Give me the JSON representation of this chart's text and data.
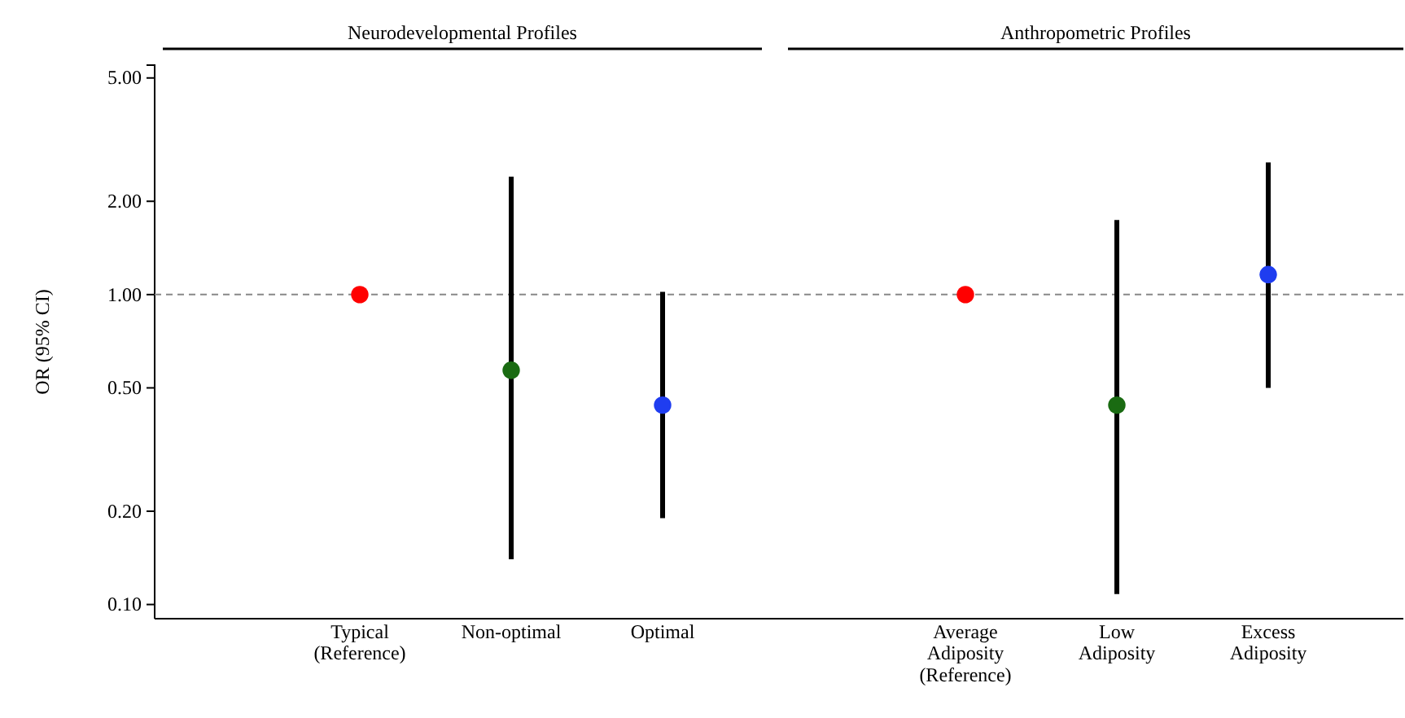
{
  "chart_data": {
    "type": "scatter",
    "ylabel": "OR (95% CI)",
    "categories": [
      null,
      "Typical\n(Reference)",
      "Non-optimal",
      "Optimal",
      null,
      "Average\nAdiposity\n(Reference)",
      "Low\nAdiposity",
      "Excess\nAdiposity"
    ],
    "values": [
      null,
      1.0,
      0.57,
      0.44,
      null,
      1.0,
      0.44,
      1.16
    ],
    "errors": [
      null,
      null,
      [
        0.14,
        2.4
      ],
      [
        0.19,
        1.02
      ],
      null,
      null,
      [
        0.108,
        1.74
      ],
      [
        0.5,
        2.67
      ]
    ],
    "colors": [
      null,
      "#ff0000",
      "#1a6b12",
      "#1f3df0",
      null,
      "#ff0000",
      "#1a6b12",
      "#1f3df0"
    ],
    "log": true,
    "ylim": [
      0.09,
      5.5
    ],
    "yticks": [
      {
        "value": 0.1,
        "label": "0.10"
      },
      {
        "value": 0.2,
        "label": "0.20"
      },
      {
        "value": 0.5,
        "label": "0.50"
      },
      {
        "value": 1,
        "label": "1.00"
      },
      {
        "value": 2,
        "label": "2.00"
      },
      {
        "value": 5,
        "label": "5.00"
      }
    ],
    "ref_lines": [
      {
        "axis": "y",
        "value": 1,
        "label": null,
        "color": "#888888",
        "line_style": "dashed"
      }
    ],
    "annotations": [
      "Neurodevelopmental Profiles",
      "Anthropometric Profiles"
    ],
    "marker": "circle",
    "grid": false
  }
}
